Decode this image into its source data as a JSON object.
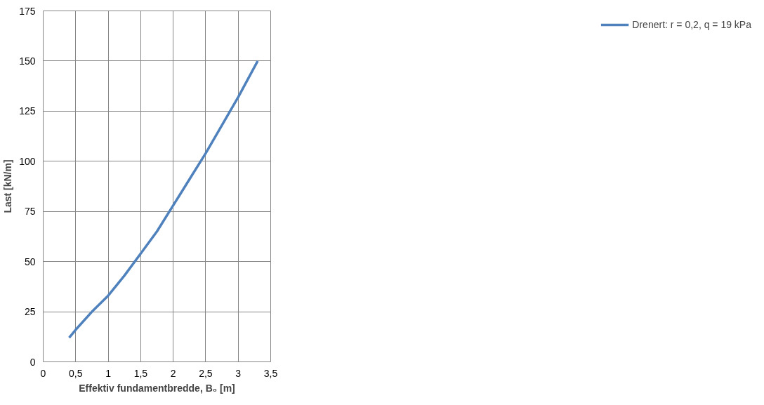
{
  "chart_data": {
    "type": "line",
    "xlabel": "Effektiv fundamentbredde, B₀ [m]",
    "ylabel": "Last [kN/m]",
    "xlim": [
      0,
      3.5
    ],
    "ylim": [
      0,
      175
    ],
    "xticks": [
      0,
      {
        "value": 0.5,
        "label": "0,5"
      },
      1,
      {
        "value": 1.5,
        "label": "1,5"
      },
      2,
      {
        "value": 2.5,
        "label": "2,5"
      },
      3,
      {
        "value": 3.5,
        "label": "3,5"
      }
    ],
    "yticks": [
      0,
      25,
      50,
      75,
      100,
      125,
      150,
      175
    ],
    "grid": true,
    "legend": "right",
    "marker": "none",
    "line_style": "solid",
    "series": [
      {
        "name": "Drenert: r = 0,2, q = 19 kPa",
        "color": "#4f81bd",
        "x": [
          0.4,
          0.5,
          0.75,
          1,
          1.25,
          1.5,
          1.75,
          2,
          2.25,
          2.5,
          2.75,
          3,
          3.15,
          3.3
        ],
        "values": [
          12,
          16,
          25,
          33,
          43,
          54,
          65,
          78,
          91,
          104,
          118,
          132,
          141,
          150
        ]
      }
    ]
  }
}
